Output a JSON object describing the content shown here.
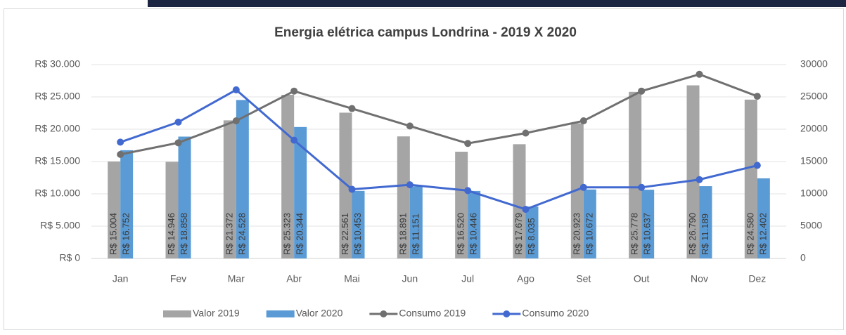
{
  "chart_data": {
    "type": "bar_line",
    "title": "Energia elétrica campus Londrina - 2019 X 2020",
    "categories": [
      "Jan",
      "Fev",
      "Mar",
      "Abr",
      "Mai",
      "Jun",
      "Jul",
      "Ago",
      "Set",
      "Out",
      "Nov",
      "Dez"
    ],
    "series": [
      {
        "name": "Valor 2019",
        "type": "bar",
        "color": "#a5a5a5",
        "axis": "y",
        "values": [
          15004,
          14946,
          21372,
          25323,
          22561,
          18891,
          16520,
          17679,
          20923,
          25778,
          26790,
          24580
        ],
        "value_labels": [
          "R$ 15.004",
          "R$ 14.946",
          "R$ 21.372",
          "R$ 25.323",
          "R$ 22.561",
          "R$ 18.891",
          "R$ 16.520",
          "R$ 17.679",
          "R$ 20.923",
          "R$ 25.778",
          "R$ 26.790",
          "R$ 24.580"
        ]
      },
      {
        "name": "Valor 2020",
        "type": "bar",
        "color": "#5b9bd5",
        "axis": "y",
        "values": [
          16752,
          18858,
          24528,
          20344,
          10453,
          11151,
          10446,
          8035,
          10672,
          10637,
          11189,
          12402
        ],
        "value_labels": [
          "R$ 16.752",
          "R$ 18.858",
          "R$ 24.528",
          "R$ 20.344",
          "R$ 10.453",
          "R$ 11.151",
          "R$ 10.446",
          "R$ 8.035",
          "R$ 10.672",
          "R$ 10.637",
          "R$ 11.189",
          "R$ 12.402"
        ]
      },
      {
        "name": "Consumo 2019",
        "type": "line",
        "color": "#707070",
        "axis": "y2",
        "values": [
          16100,
          17900,
          21300,
          25900,
          23200,
          20500,
          17800,
          19400,
          21300,
          25900,
          28500,
          25100
        ]
      },
      {
        "name": "Consumo 2020",
        "type": "line",
        "color": "#4169d0",
        "axis": "y2",
        "values": [
          18000,
          21100,
          26100,
          18300,
          10700,
          11400,
          10500,
          7600,
          11000,
          11000,
          12200,
          14400
        ]
      }
    ],
    "ylim": [
      0,
      30000
    ],
    "yticks": [
      {
        "value": 0,
        "label": "R$ 0"
      },
      {
        "value": 5000,
        "label": "R$ 5.000"
      },
      {
        "value": 10000,
        "label": "R$ 10.000"
      },
      {
        "value": 15000,
        "label": "R$ 15.000"
      },
      {
        "value": 20000,
        "label": "R$ 20.000"
      },
      {
        "value": 25000,
        "label": "R$ 25.000"
      },
      {
        "value": 30000,
        "label": "R$ 30.000"
      }
    ],
    "y2lim": [
      0,
      30000
    ],
    "y2ticks": [
      0,
      5000,
      10000,
      15000,
      20000,
      25000,
      30000
    ],
    "grid": true,
    "legend": "bottom"
  }
}
